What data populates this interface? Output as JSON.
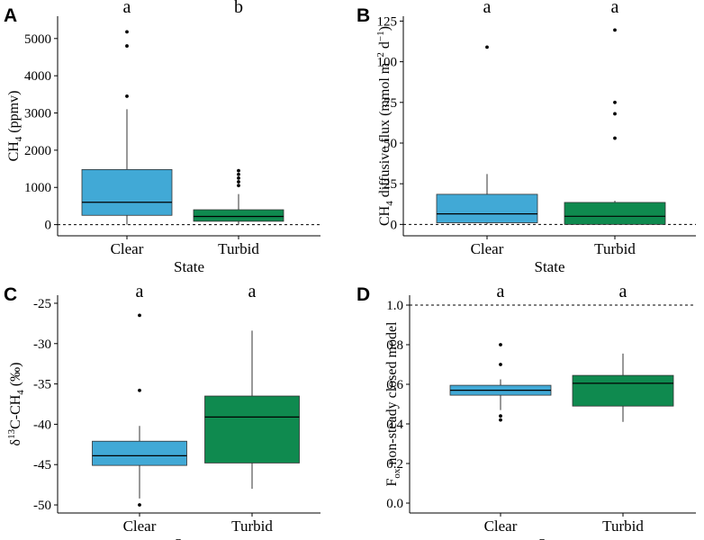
{
  "colors": {
    "clear": "#41A9D6",
    "turbid": "#0F8A4F"
  },
  "chart_data": [
    {
      "panel": "A",
      "type": "box",
      "xlabel": "State",
      "ylabel": {
        "pre": "CH",
        "sub": "4",
        "post": " (ppmv)"
      },
      "categories": [
        "Clear",
        "Turbid"
      ],
      "ylim": [
        -300,
        5600
      ],
      "yticks": [
        0,
        1000,
        2000,
        3000,
        4000,
        5000
      ],
      "yticklabels": [
        "0",
        "1000",
        "2000",
        "3000",
        "4000",
        "5000"
      ],
      "ref_line": 0,
      "boxes": [
        {
          "category": "Clear",
          "q1": 250,
          "median": 600,
          "q3": 1480,
          "whisker_low": 0,
          "whisker_high": 3100,
          "outliers": [
            3450,
            4800,
            5180
          ],
          "sig": "a"
        },
        {
          "category": "Turbid",
          "q1": 90,
          "median": 220,
          "q3": 400,
          "whisker_low": 0,
          "whisker_high": 820,
          "outliers": [
            1050,
            1150,
            1250,
            1350,
            1450
          ],
          "sig": "b"
        }
      ]
    },
    {
      "panel": "B",
      "type": "box",
      "xlabel": "State",
      "ylabel": {
        "pre": "CH",
        "sub": "4",
        "mid": " diffusive flux (mmol m",
        "sup1": "−2",
        "mid2": " d",
        "sup2": "−1",
        "post": ")"
      },
      "categories": [
        "Clear",
        "Turbid"
      ],
      "ylim": [
        -7,
        128
      ],
      "yticks": [
        0,
        25,
        50,
        75,
        100,
        125
      ],
      "yticklabels": [
        "0",
        "25",
        "50",
        "75",
        "100",
        "125"
      ],
      "ref_line": 0,
      "boxes": [
        {
          "category": "Clear",
          "q1": 1,
          "median": 6.5,
          "q3": 18.5,
          "whisker_low": 0,
          "whisker_high": 31,
          "outliers": [
            109
          ],
          "sig": "a"
        },
        {
          "category": "Turbid",
          "q1": 0,
          "median": 5,
          "q3": 13.5,
          "whisker_low": 0,
          "whisker_high": 14.5,
          "outliers": [
            53,
            68,
            75,
            119.5
          ],
          "sig": "a"
        }
      ]
    },
    {
      "panel": "C",
      "type": "box",
      "xlabel": "State",
      "ylabel": {
        "pre": "δ",
        "sup1": "13",
        "mid": "C-CH",
        "sub": "4",
        "post": " (‰)"
      },
      "categories": [
        "Clear",
        "Turbid"
      ],
      "ylim": [
        -51,
        -24
      ],
      "yticks": [
        -50,
        -45,
        -40,
        -35,
        -30,
        -25
      ],
      "yticklabels": [
        "-50",
        "-45",
        "-40",
        "-35",
        "-30",
        "-25"
      ],
      "boxes": [
        {
          "category": "Clear",
          "q1": -45.1,
          "median": -43.9,
          "q3": -42.1,
          "whisker_low": -49.2,
          "whisker_high": -40.2,
          "outliers": [
            -35.8,
            -26.5,
            -50.0
          ],
          "sig": "a"
        },
        {
          "category": "Turbid",
          "q1": -44.8,
          "median": -39.1,
          "q3": -36.5,
          "whisker_low": -48.0,
          "whisker_high": -28.4,
          "outliers": [],
          "sig": "a"
        }
      ]
    },
    {
      "panel": "D",
      "type": "box",
      "xlabel": "State",
      "ylabel": {
        "pre": "F",
        "sub": "ox",
        "post": " non-steady closed model"
      },
      "categories": [
        "Clear",
        "Turbid"
      ],
      "ylim": [
        -0.05,
        1.05
      ],
      "yticks": [
        0.0,
        0.2,
        0.4,
        0.6,
        0.8,
        1.0
      ],
      "yticklabels": [
        "0.0",
        "0.2",
        "0.4",
        "0.6",
        "0.8",
        "1.0"
      ],
      "ref_line": 1.0,
      "boxes": [
        {
          "category": "Clear",
          "q1": 0.545,
          "median": 0.57,
          "q3": 0.595,
          "whisker_low": 0.47,
          "whisker_high": 0.625,
          "outliers": [
            0.7,
            0.8,
            0.42,
            0.44
          ],
          "sig": "a"
        },
        {
          "category": "Turbid",
          "q1": 0.49,
          "median": 0.605,
          "q3": 0.645,
          "whisker_low": 0.41,
          "whisker_high": 0.755,
          "outliers": [],
          "sig": "a"
        }
      ]
    }
  ]
}
